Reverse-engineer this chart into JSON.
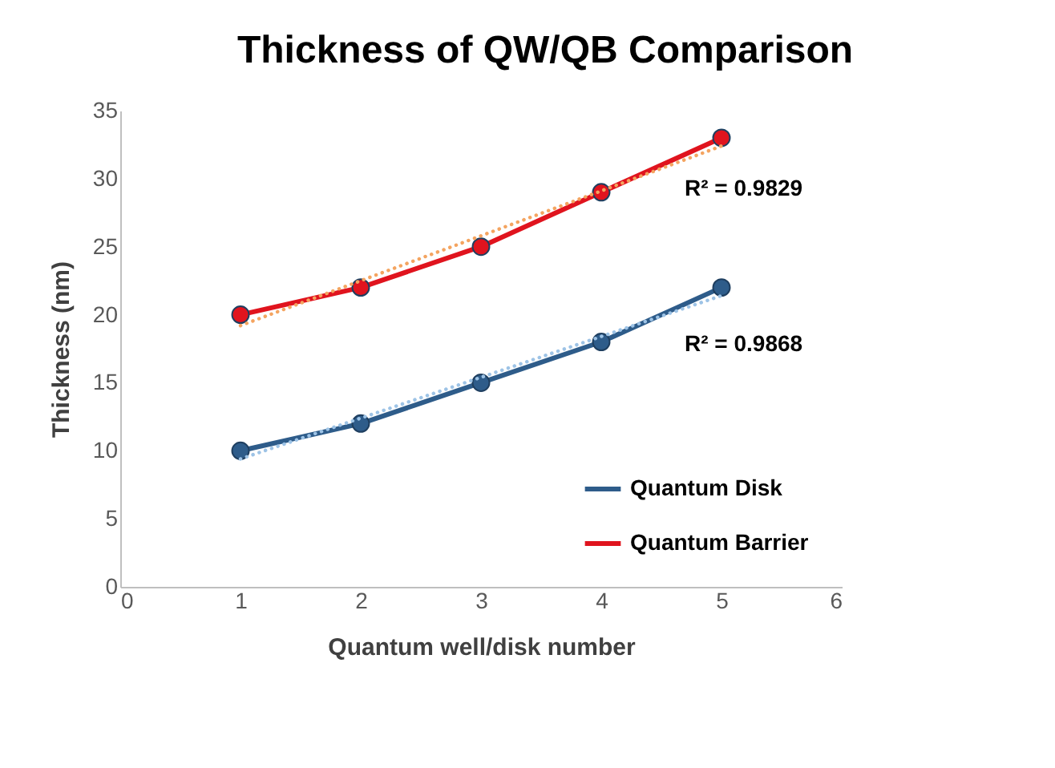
{
  "chart_data": {
    "type": "line",
    "title": "Thickness of QW/QB Comparison",
    "xlabel": "Quantum well/disk number",
    "ylabel": "Thickness (nm)",
    "x": [
      1,
      2,
      3,
      4,
      5
    ],
    "series": [
      {
        "name": "Quantum Disk",
        "color": "#2e5c8a",
        "values": [
          10,
          12,
          15,
          18,
          22
        ]
      },
      {
        "name": "Quantum Barrier",
        "color": "#e0141e",
        "values": [
          20,
          22,
          25,
          29,
          33
        ]
      },
      {
        "type": "line",
        "color": "#9dc3e6",
        "values": [
          9.4,
          12.4,
          15.4,
          18.4,
          21.4
        ],
        "line_style": "dotted",
        "marker": "none"
      },
      {
        "type": "line",
        "color": "#f4a460",
        "values": [
          19.2,
          22.5,
          25.8,
          29.1,
          32.4
        ],
        "line_style": "dotted",
        "marker": "none"
      }
    ],
    "annotations": [
      "R² = 0.9829",
      "R² = 0.9868"
    ],
    "xlim": [
      0,
      6
    ],
    "xticks": [
      0,
      1,
      2,
      3,
      4,
      5,
      6
    ],
    "ylim": [
      0,
      35
    ],
    "yticks": [
      0,
      5,
      10,
      15,
      20,
      25,
      30,
      35
    ],
    "grid": false,
    "legend": "bottom right",
    "marker": "circle",
    "line_style": "solid"
  }
}
